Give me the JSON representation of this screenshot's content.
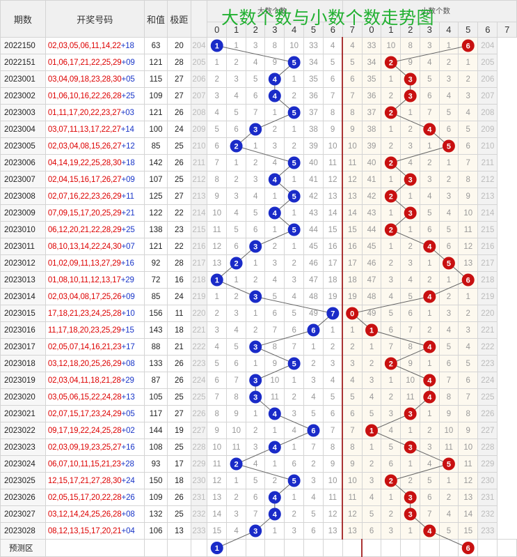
{
  "headers": {
    "period": "期数",
    "numbers": "开奖号码",
    "sum": "和值",
    "span": "极距",
    "big_group": "大数个数",
    "small_group": "小数个数",
    "big_cols": [
      "0",
      "1",
      "2",
      "3",
      "4",
      "5",
      "6",
      "7"
    ],
    "small_cols": [
      "0",
      "1",
      "2",
      "3",
      "4",
      "5",
      "6",
      "7"
    ]
  },
  "title": "大数个数与小数个数走势图",
  "predict_label": "预测区",
  "colors": {
    "big_ball": "#1a2bc8",
    "small_ball": "#c81010",
    "line": "#666666"
  },
  "chart_data": {
    "type": "table",
    "title": "大数个数与小数个数走势图",
    "periods": [
      "2022150",
      "2022151",
      "2023001",
      "2023002",
      "2023003",
      "2023004",
      "2023005",
      "2023006",
      "2023007",
      "2023008",
      "2023009",
      "2023010",
      "2023011",
      "2023012",
      "2023013",
      "2023014",
      "2023015",
      "2023016",
      "2023017",
      "2023018",
      "2023019",
      "2023020",
      "2023021",
      "2023022",
      "2023023",
      "2023024",
      "2023025",
      "2023026",
      "2023027",
      "2023028"
    ],
    "red_numbers": [
      "02,03,05,06,11,14,22",
      "01,06,17,21,22,25,29",
      "03,04,09,18,23,28,30",
      "01,06,10,16,22,26,28",
      "01,11,17,20,22,23,27",
      "03,07,11,13,17,22,27",
      "02,03,04,08,15,26,27",
      "04,14,19,22,25,28,30",
      "02,04,15,16,17,26,27",
      "02,07,16,22,23,26,29",
      "07,09,15,17,20,25,29",
      "06,12,20,21,22,28,29",
      "08,10,13,14,22,24,30",
      "01,02,09,11,13,27,29",
      "01,08,10,11,12,13,17",
      "02,03,04,08,17,25,26",
      "17,18,21,23,24,25,28",
      "11,17,18,20,23,25,29",
      "02,05,07,14,16,21,23",
      "03,12,18,20,25,26,29",
      "02,03,04,11,18,21,28",
      "03,05,06,15,22,24,28",
      "02,07,15,17,23,24,29",
      "09,17,19,22,24,25,28",
      "02,03,09,19,23,25,27",
      "06,07,10,11,15,21,23",
      "12,15,17,21,27,28,30",
      "02,05,15,17,20,22,28",
      "03,12,14,24,25,26,28",
      "08,12,13,15,17,20,21"
    ],
    "blue_numbers": [
      "+18",
      "+09",
      "+05",
      "+25",
      "+03",
      "+14",
      "+12",
      "+18",
      "+09",
      "+11",
      "+21",
      "+25",
      "+07",
      "+16",
      "+29",
      "+09",
      "+10",
      "+15",
      "+17",
      "+08",
      "+29",
      "+13",
      "+05",
      "+02",
      "+16",
      "+28",
      "+24",
      "+26",
      "+08",
      "+04"
    ],
    "sum": [
      63,
      121,
      115,
      109,
      121,
      100,
      85,
      142,
      107,
      125,
      122,
      138,
      121,
      92,
      72,
      85,
      156,
      143,
      88,
      133,
      87,
      105,
      117,
      144,
      108,
      93,
      150,
      109,
      132,
      106
    ],
    "span": [
      20,
      28,
      27,
      27,
      26,
      24,
      25,
      26,
      25,
      27,
      22,
      23,
      22,
      28,
      16,
      24,
      11,
      18,
      21,
      26,
      26,
      25,
      27,
      19,
      25,
      17,
      18,
      26,
      25,
      13
    ],
    "row_index": [
      204,
      205,
      206,
      207,
      208,
      209,
      210,
      211,
      212,
      213,
      214,
      215,
      216,
      217,
      218,
      219,
      220,
      221,
      222,
      223,
      224,
      225,
      226,
      227,
      228,
      229,
      230,
      231,
      232,
      233
    ],
    "big_count": [
      1,
      5,
      4,
      4,
      5,
      3,
      2,
      5,
      4,
      5,
      4,
      5,
      3,
      2,
      1,
      3,
      7,
      6,
      3,
      5,
      3,
      3,
      4,
      6,
      4,
      2,
      5,
      4,
      4,
      3
    ],
    "small_count": [
      6,
      2,
      3,
      3,
      2,
      4,
      5,
      2,
      3,
      2,
      3,
      2,
      4,
      5,
      6,
      4,
      0,
      1,
      4,
      2,
      4,
      4,
      3,
      1,
      3,
      5,
      2,
      3,
      3,
      4
    ],
    "big_omission": [
      [
        204,
        1,
        1,
        3,
        8,
        10,
        33,
        4
      ],
      [
        205,
        1,
        2,
        4,
        9,
        5,
        34,
        5
      ],
      [
        206,
        2,
        3,
        5,
        4,
        1,
        35,
        6
      ],
      [
        207,
        3,
        4,
        6,
        4,
        2,
        36,
        7
      ],
      [
        208,
        4,
        5,
        7,
        1,
        5,
        37,
        8
      ],
      [
        209,
        5,
        6,
        3,
        2,
        1,
        38,
        9
      ],
      [
        210,
        6,
        2,
        1,
        3,
        2,
        39,
        10
      ],
      [
        211,
        7,
        1,
        2,
        4,
        5,
        40,
        11
      ],
      [
        212,
        8,
        2,
        3,
        4,
        1,
        41,
        12
      ],
      [
        213,
        9,
        3,
        4,
        1,
        5,
        42,
        13
      ],
      [
        214,
        10,
        4,
        5,
        4,
        1,
        43,
        14
      ],
      [
        215,
        11,
        5,
        6,
        1,
        5,
        44,
        15
      ],
      [
        216,
        12,
        6,
        3,
        2,
        1,
        45,
        16
      ],
      [
        217,
        13,
        2,
        1,
        3,
        2,
        46,
        17
      ],
      [
        218,
        1,
        1,
        2,
        4,
        3,
        47,
        18
      ],
      [
        219,
        1,
        2,
        3,
        5,
        4,
        48,
        19
      ],
      [
        220,
        2,
        3,
        1,
        6,
        5,
        49,
        7
      ],
      [
        221,
        3,
        4,
        2,
        7,
        6,
        6,
        1
      ],
      [
        222,
        4,
        5,
        3,
        8,
        7,
        1,
        2
      ],
      [
        223,
        5,
        6,
        1,
        9,
        5,
        2,
        3
      ],
      [
        224,
        6,
        7,
        3,
        10,
        1,
        3,
        4
      ],
      [
        225,
        7,
        8,
        3,
        11,
        2,
        4,
        5
      ],
      [
        226,
        8,
        9,
        1,
        4,
        3,
        5,
        6
      ],
      [
        227,
        9,
        10,
        2,
        1,
        4,
        6,
        7
      ],
      [
        228,
        10,
        11,
        3,
        4,
        1,
        7,
        8
      ],
      [
        229,
        11,
        2,
        4,
        1,
        6,
        2,
        9
      ],
      [
        230,
        12,
        1,
        5,
        2,
        5,
        3,
        10
      ],
      [
        231,
        13,
        2,
        6,
        4,
        1,
        4,
        11
      ],
      [
        232,
        14,
        3,
        7,
        4,
        2,
        5,
        12
      ],
      [
        233,
        15,
        4,
        3,
        1,
        3,
        6,
        13
      ]
    ],
    "small_omission": [
      [
        4,
        33,
        10,
        8,
        3,
        1,
        6,
        204
      ],
      [
        5,
        34,
        2,
        9,
        4,
        2,
        1,
        205
      ],
      [
        6,
        35,
        1,
        3,
        5,
        3,
        2,
        206
      ],
      [
        7,
        36,
        2,
        3,
        6,
        4,
        3,
        207
      ],
      [
        8,
        37,
        2,
        1,
        7,
        5,
        4,
        208
      ],
      [
        9,
        38,
        1,
        2,
        4,
        6,
        5,
        209
      ],
      [
        10,
        39,
        2,
        3,
        1,
        5,
        6,
        210
      ],
      [
        11,
        40,
        2,
        4,
        2,
        1,
        7,
        211
      ],
      [
        12,
        41,
        1,
        3,
        3,
        2,
        8,
        212
      ],
      [
        13,
        42,
        2,
        1,
        4,
        3,
        9,
        213
      ],
      [
        14,
        43,
        1,
        3,
        5,
        4,
        10,
        214
      ],
      [
        15,
        44,
        2,
        1,
        6,
        5,
        11,
        215
      ],
      [
        16,
        45,
        1,
        2,
        4,
        6,
        12,
        216
      ],
      [
        17,
        46,
        2,
        3,
        1,
        5,
        13,
        217
      ],
      [
        18,
        47,
        3,
        4,
        2,
        1,
        6,
        218
      ],
      [
        19,
        48,
        4,
        5,
        4,
        2,
        1,
        219
      ],
      [
        0,
        49,
        5,
        6,
        1,
        3,
        2,
        220
      ],
      [
        1,
        1,
        6,
        7,
        2,
        4,
        3,
        221
      ],
      [
        2,
        1,
        7,
        8,
        4,
        5,
        4,
        222
      ],
      [
        3,
        2,
        2,
        9,
        1,
        6,
        5,
        223
      ],
      [
        4,
        3,
        1,
        10,
        4,
        7,
        6,
        224
      ],
      [
        5,
        4,
        2,
        11,
        4,
        8,
        7,
        225
      ],
      [
        6,
        5,
        3,
        3,
        1,
        9,
        8,
        226
      ],
      [
        7,
        1,
        4,
        1,
        2,
        10,
        9,
        227
      ],
      [
        8,
        1,
        5,
        3,
        3,
        11,
        10,
        228
      ],
      [
        9,
        2,
        6,
        1,
        4,
        5,
        11,
        229
      ],
      [
        10,
        3,
        2,
        2,
        5,
        1,
        12,
        230
      ],
      [
        11,
        4,
        1,
        3,
        6,
        2,
        13,
        231
      ],
      [
        12,
        5,
        2,
        3,
        7,
        4,
        14,
        232
      ],
      [
        13,
        6,
        3,
        1,
        4,
        5,
        15,
        233
      ]
    ],
    "predict": {
      "big": 1,
      "small": 6
    }
  }
}
